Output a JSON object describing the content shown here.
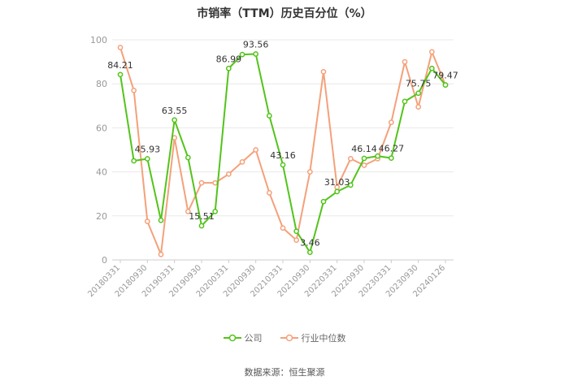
{
  "chart_data": {
    "type": "line",
    "title": "市销率（TTM）历史百分位（%）",
    "xlabel": "",
    "ylabel": "",
    "ylim": [
      0,
      100
    ],
    "yticks": [
      0,
      20,
      40,
      60,
      80,
      100
    ],
    "grid": true,
    "legend_position": "bottom",
    "x": [
      "20180331",
      "20180630",
      "20180930",
      "20181231",
      "20190331",
      "20190630",
      "20190930",
      "20191231",
      "20200331",
      "20200630",
      "20200930",
      "20201231",
      "20210331",
      "20210630",
      "20210930",
      "20211231",
      "20220331",
      "20220630",
      "20220930",
      "20221231",
      "20230331",
      "20230630",
      "20230930",
      "20231231",
      "20240126"
    ],
    "xtick_labels": [
      "20180331",
      "20180930",
      "20190331",
      "20190930",
      "20200331",
      "20200930",
      "20210331",
      "20210930",
      "20220331",
      "20220930",
      "20230331",
      "20230930",
      "20240126"
    ],
    "series": [
      {
        "name": "公司",
        "color": "#52c41a",
        "values": [
          84.21,
          45.0,
          45.93,
          18.0,
          63.55,
          46.5,
          15.51,
          22.0,
          86.99,
          93.3,
          93.56,
          65.5,
          43.16,
          13.0,
          3.46,
          26.5,
          31.03,
          34.0,
          46.14,
          47.2,
          46.27,
          72.0,
          75.75,
          87.0,
          79.47
        ],
        "point_labels": {
          "0": "84.21",
          "2": "45.93",
          "4": "63.55",
          "6": "15.51",
          "8": "86.99",
          "10": "93.56",
          "12": "43.16",
          "14": "3.46",
          "16": "31.03",
          "18": "46.14",
          "20": "46.27",
          "22": "75.75",
          "24": "79.47"
        }
      },
      {
        "name": "行业中位数",
        "color": "#f4a17a",
        "values": [
          96.5,
          77.0,
          17.5,
          2.5,
          55.5,
          22.0,
          35.0,
          35.0,
          39.0,
          44.5,
          50.0,
          30.5,
          14.5,
          9.0,
          40.0,
          85.5,
          33.0,
          46.0,
          43.0,
          46.0,
          62.5,
          90.0,
          69.5,
          94.5,
          79.5
        ]
      }
    ]
  },
  "source_text": "数据来源：恒生聚源"
}
